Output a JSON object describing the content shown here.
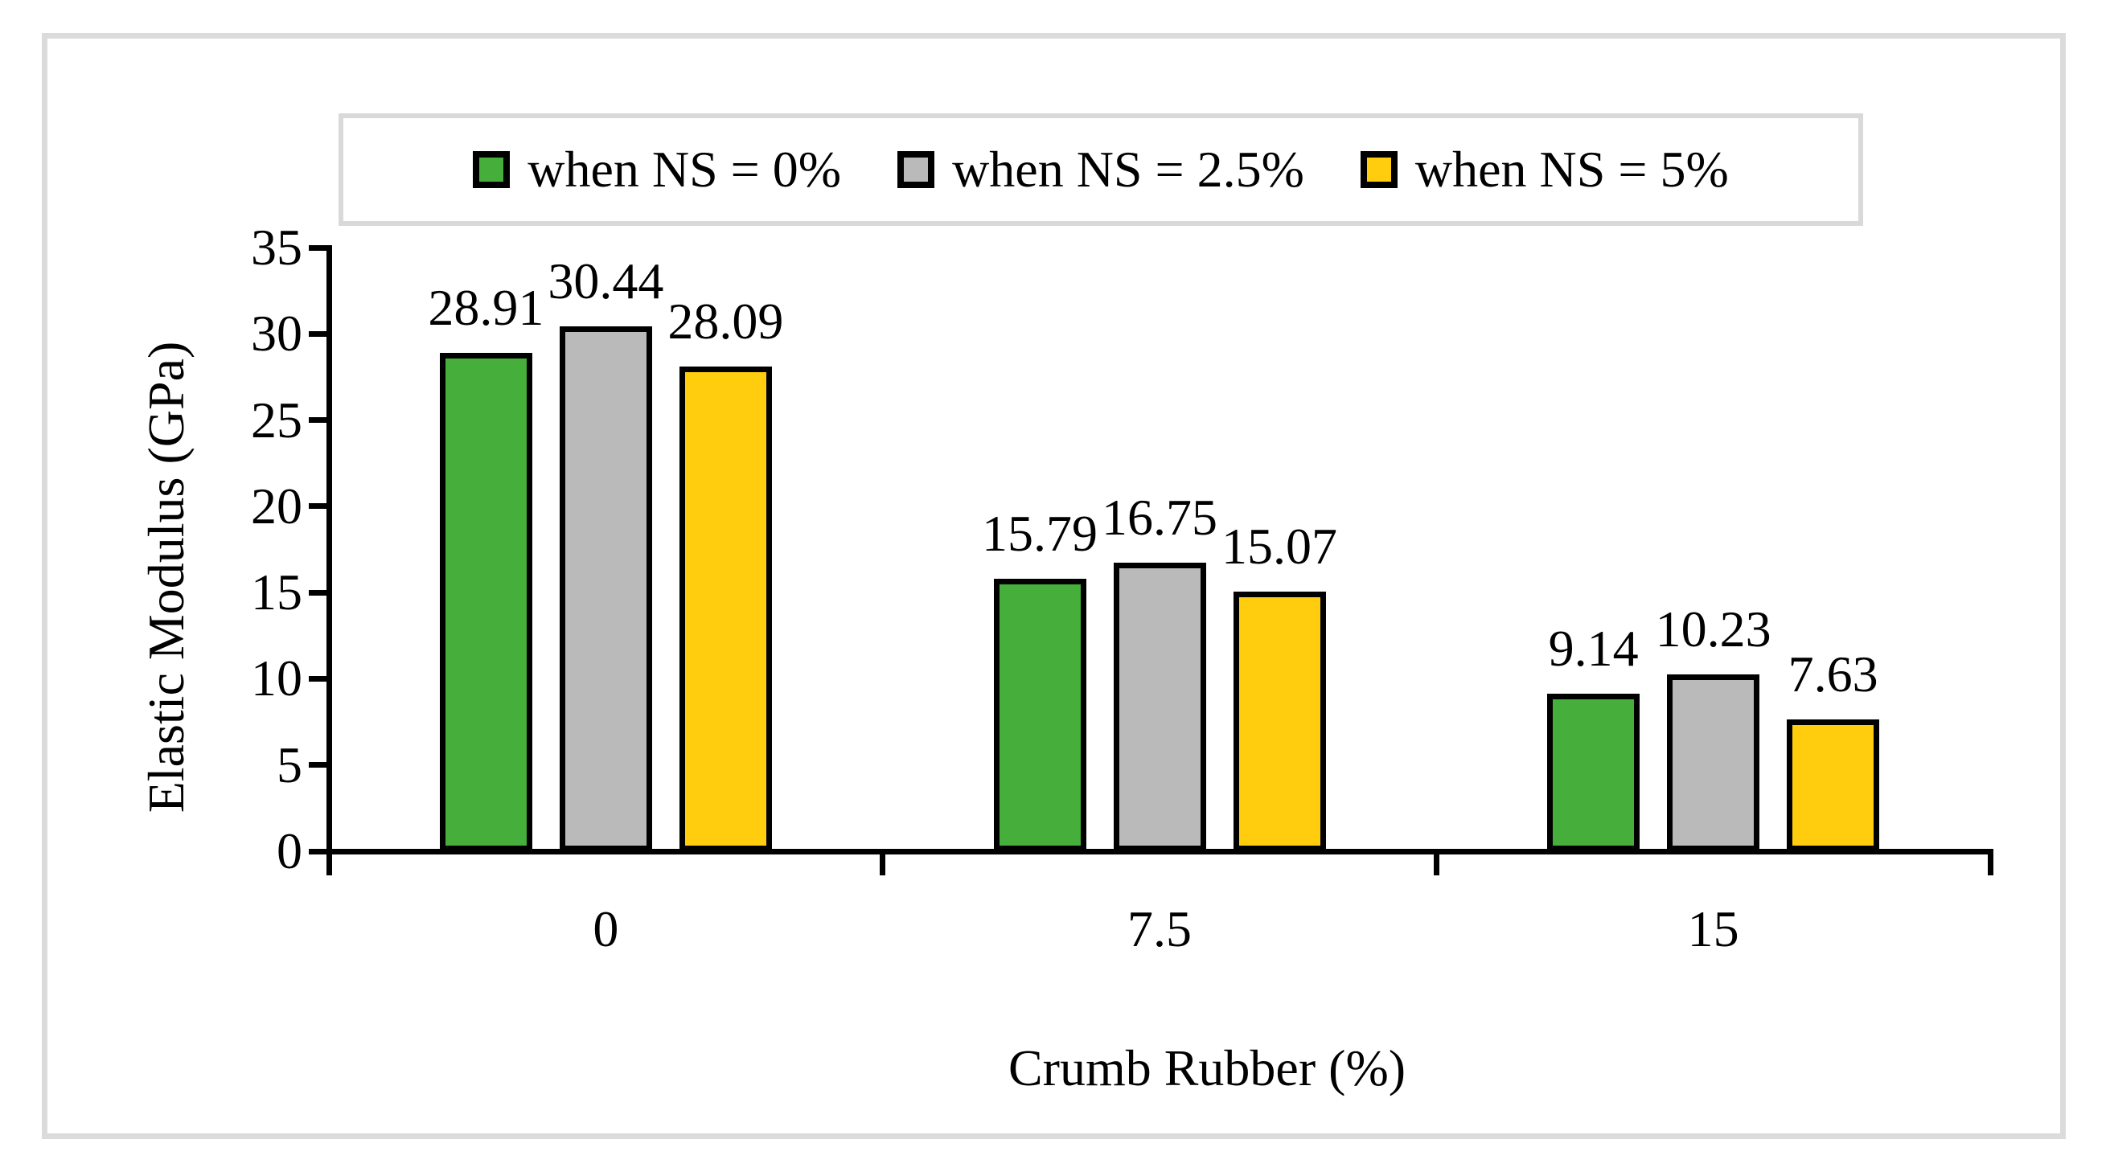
{
  "figure": {
    "background": "#FFFFFF",
    "frame_color": "#DBDBDB",
    "legend_border_color": "#D9D9D9",
    "axis_color": "#000000",
    "bar_border_color": "#000000"
  },
  "chart_data": {
    "type": "bar",
    "title": "",
    "xlabel": "Crumb Rubber (%)",
    "ylabel": "Elastic Modulus (GPa)",
    "categories": [
      "0",
      "7.5",
      "15"
    ],
    "series": [
      {
        "name": "when NS = 0%",
        "color": "#46AE3A",
        "values": [
          28.91,
          15.79,
          9.14
        ]
      },
      {
        "name": "when NS = 2.5%",
        "color": "#BABABA",
        "values": [
          30.44,
          16.75,
          10.23
        ]
      },
      {
        "name": "when NS = 5%",
        "color": "#FFCD0D",
        "values": [
          28.09,
          15.07,
          7.63
        ]
      }
    ],
    "data_labels": [
      "28.91",
      "30.44",
      "28.09",
      "15.79",
      "16.75",
      "15.07",
      "9.14",
      "10.23",
      "7.63"
    ],
    "ylim": [
      0,
      35
    ],
    "yticks": [
      0,
      5,
      10,
      15,
      20,
      25,
      30,
      35
    ],
    "grid": false,
    "legend_position": "top"
  }
}
